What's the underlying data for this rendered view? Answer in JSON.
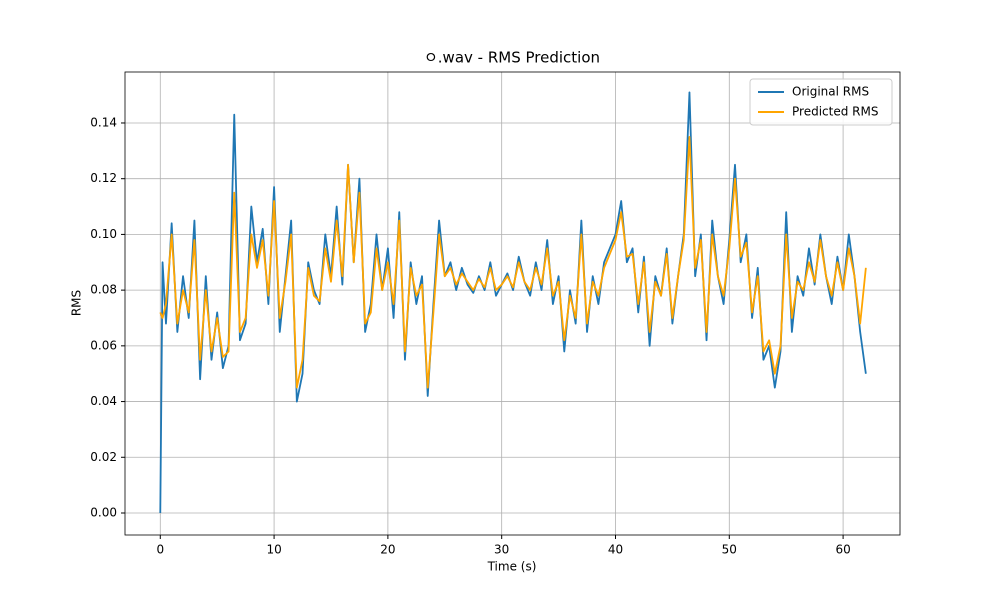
{
  "chart_data": {
    "type": "line",
    "title": "ㅇ.wav - RMS Prediction",
    "x_label": "Time (s)",
    "y_label": "RMS",
    "x": [
      0,
      0.2,
      0.5,
      1,
      1.5,
      2,
      2.5,
      3,
      3.5,
      4,
      4.5,
      5,
      5.5,
      6,
      6.5,
      7,
      7.5,
      8,
      8.5,
      9,
      9.5,
      10,
      10.5,
      11,
      11.5,
      12,
      12.5,
      13,
      13.5,
      14,
      14.5,
      15,
      15.5,
      16,
      16.5,
      17,
      17.5,
      18,
      18.5,
      19,
      19.5,
      20,
      20.5,
      21,
      21.5,
      22,
      22.5,
      23,
      23.5,
      24,
      24.5,
      25,
      25.5,
      26,
      26.5,
      27,
      27.5,
      28,
      28.5,
      29,
      29.5,
      30,
      30.5,
      31,
      31.5,
      32,
      32.5,
      33,
      33.5,
      34,
      34.5,
      35,
      35.5,
      36,
      36.5,
      37,
      37.5,
      38,
      38.5,
      39,
      39.5,
      40,
      40.5,
      41,
      41.5,
      42,
      42.5,
      43,
      43.5,
      44,
      44.5,
      45,
      45.5,
      46,
      46.5,
      47,
      47.5,
      48,
      48.5,
      49,
      49.5,
      50,
      50.5,
      51,
      51.5,
      52,
      52.5,
      53,
      53.5,
      54,
      54.5,
      55,
      55.5,
      56,
      56.5,
      57,
      57.5,
      58,
      58.5,
      59,
      59.5,
      60,
      60.5,
      61,
      61.5,
      62
    ],
    "series": [
      {
        "name": "Original RMS",
        "color": "#1f77b4",
        "values": [
          0.0,
          0.09,
          0.068,
          0.104,
          0.065,
          0.085,
          0.07,
          0.105,
          0.048,
          0.085,
          0.055,
          0.072,
          0.052,
          0.06,
          0.143,
          0.062,
          0.068,
          0.11,
          0.09,
          0.102,
          0.075,
          0.117,
          0.065,
          0.085,
          0.105,
          0.04,
          0.05,
          0.09,
          0.08,
          0.075,
          0.1,
          0.085,
          0.11,
          0.082,
          0.125,
          0.09,
          0.12,
          0.065,
          0.075,
          0.1,
          0.08,
          0.095,
          0.07,
          0.108,
          0.055,
          0.09,
          0.075,
          0.085,
          0.042,
          0.075,
          0.105,
          0.085,
          0.09,
          0.08,
          0.088,
          0.082,
          0.079,
          0.085,
          0.08,
          0.09,
          0.078,
          0.082,
          0.086,
          0.08,
          0.092,
          0.083,
          0.078,
          0.09,
          0.08,
          0.098,
          0.075,
          0.085,
          0.058,
          0.08,
          0.068,
          0.105,
          0.065,
          0.085,
          0.075,
          0.09,
          0.095,
          0.1,
          0.112,
          0.09,
          0.095,
          0.072,
          0.092,
          0.06,
          0.085,
          0.078,
          0.095,
          0.068,
          0.085,
          0.1,
          0.151,
          0.085,
          0.1,
          0.062,
          0.105,
          0.085,
          0.075,
          0.098,
          0.125,
          0.09,
          0.1,
          0.07,
          0.088,
          0.055,
          0.06,
          0.045,
          0.058,
          0.108,
          0.065,
          0.085,
          0.078,
          0.095,
          0.082,
          0.1,
          0.085,
          0.075,
          0.092,
          0.08,
          0.1,
          0.085,
          0.065,
          0.05
        ]
      },
      {
        "name": "Predicted RMS",
        "color": "#ffa500",
        "values": [
          0.072,
          0.07,
          0.075,
          0.1,
          0.068,
          0.08,
          0.072,
          0.098,
          0.055,
          0.08,
          0.058,
          0.07,
          0.056,
          0.058,
          0.115,
          0.065,
          0.07,
          0.1,
          0.088,
          0.098,
          0.078,
          0.112,
          0.07,
          0.083,
          0.1,
          0.045,
          0.055,
          0.088,
          0.078,
          0.076,
          0.095,
          0.083,
          0.105,
          0.085,
          0.125,
          0.09,
          0.115,
          0.068,
          0.072,
          0.095,
          0.08,
          0.09,
          0.075,
          0.105,
          0.058,
          0.088,
          0.078,
          0.082,
          0.045,
          0.072,
          0.1,
          0.085,
          0.088,
          0.082,
          0.086,
          0.083,
          0.08,
          0.084,
          0.081,
          0.088,
          0.08,
          0.082,
          0.085,
          0.081,
          0.09,
          0.083,
          0.08,
          0.088,
          0.082,
          0.095,
          0.078,
          0.083,
          0.062,
          0.078,
          0.07,
          0.1,
          0.068,
          0.083,
          0.078,
          0.088,
          0.093,
          0.098,
          0.108,
          0.092,
          0.093,
          0.075,
          0.09,
          0.065,
          0.083,
          0.078,
          0.093,
          0.07,
          0.085,
          0.098,
          0.135,
          0.088,
          0.098,
          0.065,
          0.1,
          0.085,
          0.078,
          0.095,
          0.12,
          0.092,
          0.097,
          0.072,
          0.085,
          0.058,
          0.062,
          0.05,
          0.06,
          0.1,
          0.07,
          0.083,
          0.08,
          0.09,
          0.083,
          0.098,
          0.085,
          0.078,
          0.09,
          0.08,
          0.095,
          0.085,
          0.068,
          0.088
        ]
      }
    ],
    "xlim": [
      -3.1,
      65.0
    ],
    "xticks": [
      0,
      10,
      20,
      30,
      40,
      50,
      60
    ],
    "ylim": [
      -0.0079,
      0.1583
    ],
    "yticks": [
      {
        "value": 0,
        "label": "0.00"
      },
      {
        "value": 0.02,
        "label": "0.02"
      },
      {
        "value": 0.04,
        "label": "0.04"
      },
      {
        "value": 0.06,
        "label": "0.06"
      },
      {
        "value": 0.08,
        "label": "0.08"
      },
      {
        "value": 0.1,
        "label": "0.10"
      },
      {
        "value": 0.12,
        "label": "0.12"
      },
      {
        "value": 0.14,
        "label": "0.14"
      }
    ],
    "grid": true,
    "legend": "upper right"
  }
}
